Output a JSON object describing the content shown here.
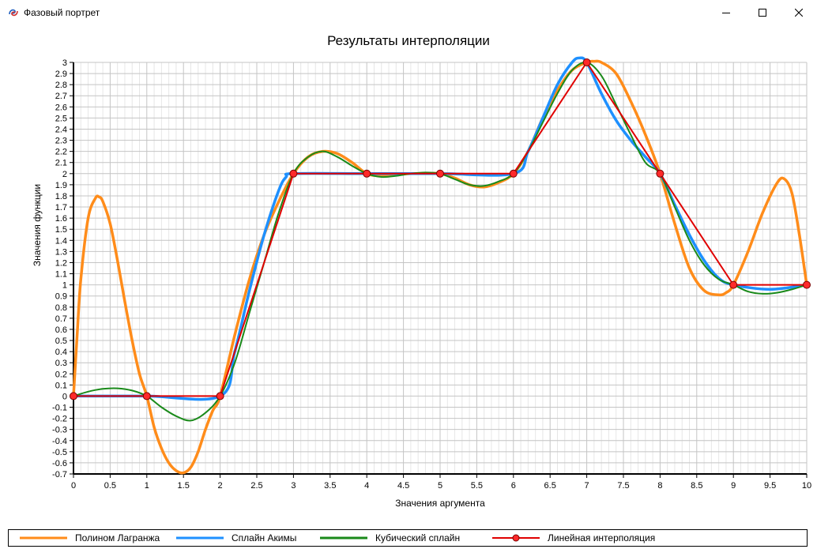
{
  "window": {
    "title": "Фазовый портрет",
    "icons": {
      "app": "phase-portrait-app-icon",
      "minimize": "minimize-icon",
      "maximize": "maximize-icon",
      "close": "close-icon"
    }
  },
  "chart_data": {
    "type": "line",
    "title": "Результаты интерполяции",
    "xlabel": "Значения аргумента",
    "ylabel": "Значения функции",
    "xlim": [
      0,
      10
    ],
    "ylim": [
      -0.7,
      3
    ],
    "x_ticks": [
      0,
      0.5,
      1,
      1.5,
      2,
      2.5,
      3,
      3.5,
      4,
      4.5,
      5,
      5.5,
      6,
      6.5,
      7,
      7.5,
      8,
      8.5,
      9,
      9.5,
      10
    ],
    "y_ticks": [
      -0.7,
      -0.6,
      -0.5,
      -0.4,
      -0.3,
      -0.2,
      -0.1,
      0,
      0.1,
      0.2,
      0.3,
      0.4,
      0.5,
      0.6,
      0.7,
      0.8,
      0.9,
      1,
      1.1,
      1.2,
      1.3,
      1.4,
      1.5,
      1.6,
      1.7,
      1.8,
      1.9,
      2,
      2.1,
      2.2,
      2.3,
      2.4,
      2.5,
      2.6,
      2.7,
      2.8,
      2.9,
      3
    ],
    "grid": true,
    "legend_position": "bottom",
    "nodes": {
      "x": [
        0,
        1,
        2,
        3,
        4,
        5,
        6,
        7,
        8,
        9,
        10
      ],
      "y": [
        0,
        0,
        0,
        2,
        2,
        2,
        2,
        3,
        2,
        1,
        1
      ]
    },
    "series": [
      {
        "name": "Полином Лагранжа",
        "color": "#ff8c1a",
        "width": 3.5,
        "markers": false,
        "x": [
          0,
          0.05,
          0.1,
          0.2,
          0.3,
          0.35,
          0.4,
          0.5,
          0.6,
          0.7,
          0.8,
          0.9,
          1.0,
          1.1,
          1.2,
          1.3,
          1.4,
          1.5,
          1.6,
          1.7,
          1.8,
          1.9,
          2.0,
          2.2,
          2.4,
          2.6,
          2.8,
          3.0,
          3.2,
          3.4,
          3.6,
          3.8,
          4.0,
          4.2,
          4.4,
          4.6,
          4.8,
          5.0,
          5.2,
          5.4,
          5.6,
          5.8,
          6.0,
          6.2,
          6.4,
          6.6,
          6.8,
          7.0,
          7.1,
          7.2,
          7.4,
          7.6,
          7.8,
          8.0,
          8.2,
          8.4,
          8.6,
          8.8,
          8.9,
          9.0,
          9.2,
          9.4,
          9.6,
          9.7,
          9.8,
          9.9,
          10.0
        ],
        "y": [
          0,
          0.55,
          1.05,
          1.6,
          1.78,
          1.79,
          1.75,
          1.55,
          1.22,
          0.85,
          0.5,
          0.2,
          0,
          -0.28,
          -0.47,
          -0.6,
          -0.67,
          -0.69,
          -0.64,
          -0.5,
          -0.3,
          -0.13,
          0,
          0.55,
          1.05,
          1.45,
          1.75,
          2.0,
          2.15,
          2.2,
          2.18,
          2.1,
          2.0,
          1.98,
          1.99,
          2.0,
          2.0,
          2.0,
          1.96,
          1.9,
          1.88,
          1.92,
          2.0,
          2.2,
          2.5,
          2.75,
          2.93,
          3.0,
          3.01,
          3.0,
          2.9,
          2.65,
          2.35,
          2.0,
          1.55,
          1.15,
          0.95,
          0.91,
          0.93,
          1.0,
          1.3,
          1.65,
          1.92,
          1.95,
          1.82,
          1.45,
          1.0
        ]
      },
      {
        "name": "Сплайн Акимы",
        "color": "#1e90ff",
        "width": 3.5,
        "markers": false,
        "x": [
          0,
          1,
          2,
          2.2,
          2.4,
          2.6,
          2.8,
          2.9,
          3.0,
          4.0,
          5.0,
          6.0,
          6.2,
          6.4,
          6.6,
          6.8,
          6.9,
          7.0,
          7.2,
          7.4,
          7.6,
          7.8,
          8.0,
          8.2,
          8.4,
          8.6,
          8.8,
          9.0,
          9.5,
          10.0
        ],
        "y": [
          0,
          0,
          0,
          0.4,
          0.95,
          1.45,
          1.85,
          1.97,
          2.0,
          2.0,
          2.0,
          2.0,
          2.2,
          2.5,
          2.8,
          3.0,
          3.04,
          3.0,
          2.72,
          2.48,
          2.3,
          2.15,
          2.0,
          1.72,
          1.45,
          1.22,
          1.06,
          1.0,
          0.96,
          1.0
        ]
      },
      {
        "name": "Кубический сплайн",
        "color": "#1a8a1a",
        "width": 2,
        "markers": false,
        "x": [
          0,
          0.2,
          0.4,
          0.6,
          0.8,
          1.0,
          1.2,
          1.4,
          1.6,
          1.8,
          2.0,
          2.2,
          2.4,
          2.6,
          2.8,
          3.0,
          3.2,
          3.4,
          3.6,
          3.8,
          4.0,
          4.2,
          4.4,
          4.6,
          4.8,
          5.0,
          5.2,
          5.4,
          5.6,
          5.8,
          6.0,
          6.2,
          6.4,
          6.6,
          6.8,
          7.0,
          7.2,
          7.4,
          7.6,
          7.8,
          8.0,
          8.2,
          8.4,
          8.6,
          8.8,
          9.0,
          9.2,
          9.4,
          9.6,
          9.8,
          10.0
        ],
        "y": [
          0,
          0.04,
          0.065,
          0.07,
          0.05,
          0,
          -0.1,
          -0.18,
          -0.22,
          -0.15,
          0,
          0.3,
          0.75,
          1.2,
          1.65,
          2.0,
          2.15,
          2.2,
          2.15,
          2.07,
          2.0,
          1.97,
          1.98,
          2.0,
          2.01,
          2.0,
          1.95,
          1.9,
          1.89,
          1.93,
          2.0,
          2.2,
          2.46,
          2.72,
          2.93,
          3.0,
          2.88,
          2.62,
          2.35,
          2.1,
          2.0,
          1.7,
          1.4,
          1.18,
          1.05,
          1.0,
          0.94,
          0.92,
          0.93,
          0.96,
          1.0
        ]
      },
      {
        "name": "Линейная интерполяция",
        "color": "#e00000",
        "width": 2,
        "markers": true,
        "marker_fill": "#ff2a2a",
        "marker_stroke": "#7a0000",
        "x": [
          0,
          1,
          2,
          3,
          4,
          5,
          6,
          7,
          8,
          9,
          10
        ],
        "y": [
          0,
          0,
          0,
          2,
          2,
          2,
          2,
          3,
          2,
          1,
          1
        ]
      }
    ]
  }
}
